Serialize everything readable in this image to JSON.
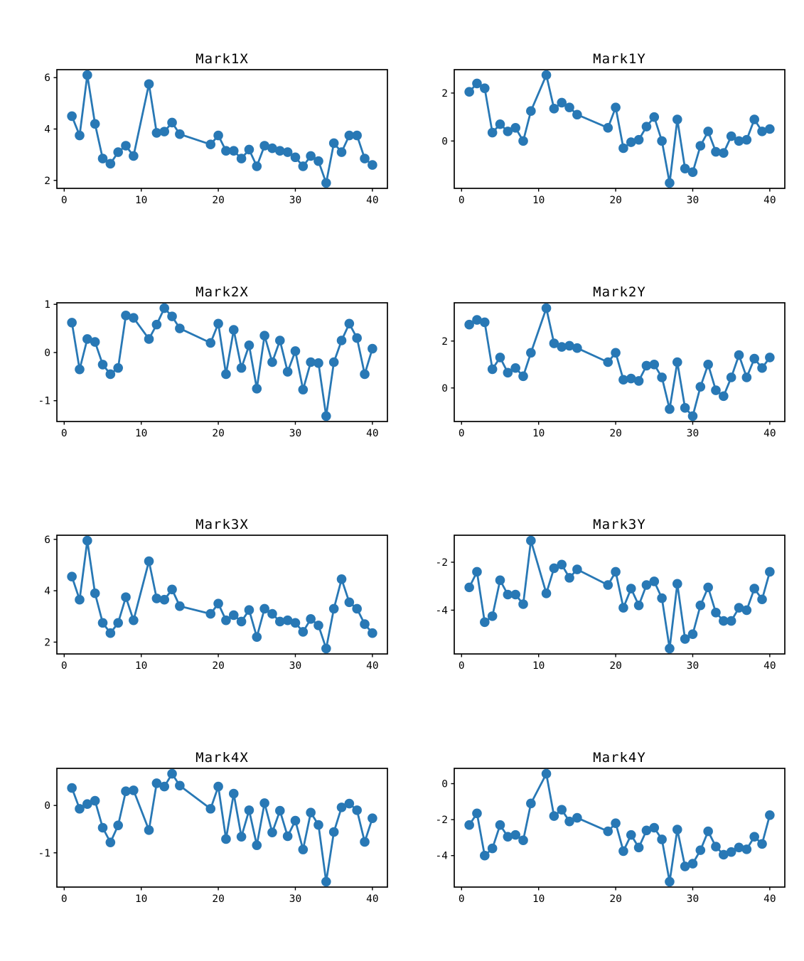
{
  "figure": {
    "background": "#ffffff",
    "accent_color": "#2878b5",
    "axis_color": "#000000",
    "text_color": "#000000"
  },
  "chart_data": [
    {
      "type": "line",
      "title": "Mark1X",
      "xlabel": "",
      "ylabel": "",
      "grid": false,
      "legend": null,
      "marker": "circle",
      "xticks": [
        0,
        10,
        20,
        30,
        40
      ],
      "yticks": [
        2,
        4,
        6
      ],
      "xlim": [
        -0.95,
        41.95
      ],
      "ylim": [
        1.69,
        6.31
      ],
      "x": [
        1,
        2,
        3,
        4,
        5,
        6,
        7,
        8,
        9,
        11,
        12,
        13,
        14,
        15,
        19,
        20,
        21,
        22,
        23,
        24,
        25,
        26,
        27,
        28,
        29,
        30,
        31,
        32,
        33,
        34,
        35,
        36,
        37,
        38,
        39,
        40
      ],
      "values": [
        4.5,
        3.75,
        6.1,
        4.2,
        2.85,
        2.65,
        3.1,
        3.35,
        2.95,
        5.75,
        3.85,
        3.9,
        4.25,
        3.8,
        3.4,
        3.75,
        3.15,
        3.15,
        2.85,
        3.2,
        2.55,
        3.35,
        3.25,
        3.15,
        3.1,
        2.9,
        2.55,
        2.95,
        2.75,
        1.9,
        3.45,
        3.1,
        3.75,
        3.75,
        2.85,
        2.6
      ]
    },
    {
      "type": "line",
      "title": "Mark1Y",
      "xlabel": "",
      "ylabel": "",
      "grid": false,
      "legend": null,
      "marker": "circle",
      "xticks": [
        0,
        10,
        20,
        30,
        40
      ],
      "yticks": [
        0,
        2
      ],
      "xlim": [
        -0.95,
        41.95
      ],
      "ylim": [
        -1.975,
        2.975
      ],
      "x": [
        1,
        2,
        3,
        4,
        5,
        6,
        7,
        8,
        9,
        11,
        12,
        13,
        14,
        15,
        19,
        20,
        21,
        22,
        23,
        24,
        25,
        26,
        27,
        28,
        29,
        30,
        31,
        32,
        33,
        34,
        35,
        36,
        37,
        38,
        39,
        40
      ],
      "values": [
        2.05,
        2.4,
        2.2,
        0.35,
        0.7,
        0.4,
        0.55,
        0.0,
        1.25,
        2.75,
        1.35,
        1.6,
        1.4,
        1.1,
        0.55,
        1.4,
        -0.3,
        -0.05,
        0.05,
        0.6,
        1.0,
        0.0,
        -1.75,
        0.9,
        -1.15,
        -1.3,
        -0.2,
        0.4,
        -0.45,
        -0.5,
        0.2,
        0.0,
        0.05,
        0.9,
        0.4,
        0.5
      ]
    },
    {
      "type": "line",
      "title": "Mark2X",
      "xlabel": "",
      "ylabel": "",
      "grid": false,
      "legend": null,
      "marker": "circle",
      "xticks": [
        0,
        10,
        20,
        30,
        40
      ],
      "yticks": [
        -1,
        0,
        1
      ],
      "xlim": [
        -0.95,
        41.95
      ],
      "ylim": [
        -1.432,
        1.032
      ],
      "x": [
        1,
        2,
        3,
        4,
        5,
        6,
        7,
        8,
        9,
        11,
        12,
        13,
        14,
        15,
        19,
        20,
        21,
        22,
        23,
        24,
        25,
        26,
        27,
        28,
        29,
        30,
        31,
        32,
        33,
        34,
        35,
        36,
        37,
        38,
        39,
        40
      ],
      "values": [
        0.62,
        -0.35,
        0.28,
        0.22,
        -0.25,
        -0.45,
        -0.32,
        0.77,
        0.72,
        0.28,
        0.58,
        0.92,
        0.75,
        0.5,
        0.2,
        0.6,
        -0.45,
        0.47,
        -0.32,
        0.15,
        -0.75,
        0.35,
        -0.2,
        0.25,
        -0.4,
        0.03,
        -0.77,
        -0.2,
        -0.22,
        -1.32,
        -0.2,
        0.25,
        0.6,
        0.3,
        -0.45,
        0.08
      ]
    },
    {
      "type": "line",
      "title": "Mark2Y",
      "xlabel": "",
      "ylabel": "",
      "grid": false,
      "legend": null,
      "marker": "circle",
      "xticks": [
        0,
        10,
        20,
        30,
        40
      ],
      "yticks": [
        0,
        2
      ],
      "xlim": [
        -0.95,
        41.95
      ],
      "ylim": [
        -1.43,
        3.63
      ],
      "x": [
        1,
        2,
        3,
        4,
        5,
        6,
        7,
        8,
        9,
        11,
        12,
        13,
        14,
        15,
        19,
        20,
        21,
        22,
        23,
        24,
        25,
        26,
        27,
        28,
        29,
        30,
        31,
        32,
        33,
        34,
        35,
        36,
        37,
        38,
        39,
        40
      ],
      "values": [
        2.7,
        2.9,
        2.8,
        0.8,
        1.3,
        0.65,
        0.85,
        0.5,
        1.5,
        3.4,
        1.9,
        1.75,
        1.8,
        1.7,
        1.1,
        1.5,
        0.35,
        0.4,
        0.3,
        0.95,
        1.0,
        0.45,
        -0.9,
        1.1,
        -0.85,
        -1.2,
        0.05,
        1.0,
        -0.1,
        -0.35,
        0.45,
        1.4,
        0.45,
        1.25,
        0.85,
        1.3
      ]
    },
    {
      "type": "line",
      "title": "Mark3X",
      "xlabel": "",
      "ylabel": "",
      "grid": false,
      "legend": null,
      "marker": "circle",
      "xticks": [
        0,
        10,
        20,
        30,
        40
      ],
      "yticks": [
        2,
        4,
        6
      ],
      "xlim": [
        -0.95,
        41.95
      ],
      "ylim": [
        1.54,
        6.16
      ],
      "x": [
        1,
        2,
        3,
        4,
        5,
        6,
        7,
        8,
        9,
        11,
        12,
        13,
        14,
        15,
        19,
        20,
        21,
        22,
        23,
        24,
        25,
        26,
        27,
        28,
        29,
        30,
        31,
        32,
        33,
        34,
        35,
        36,
        37,
        38,
        39,
        40
      ],
      "values": [
        4.55,
        3.65,
        5.95,
        3.9,
        2.75,
        2.35,
        2.75,
        3.75,
        2.85,
        5.15,
        3.7,
        3.65,
        4.05,
        3.4,
        3.1,
        3.5,
        2.85,
        3.05,
        2.8,
        3.25,
        2.2,
        3.3,
        3.1,
        2.8,
        2.85,
        2.75,
        2.4,
        2.9,
        2.65,
        1.75,
        3.3,
        4.45,
        3.55,
        3.3,
        2.7,
        2.35
      ]
    },
    {
      "type": "line",
      "title": "Mark3Y",
      "xlabel": "",
      "ylabel": "",
      "grid": false,
      "legend": null,
      "marker": "circle",
      "xticks": [
        0,
        10,
        20,
        30,
        40
      ],
      "yticks": [
        -4,
        -2
      ],
      "xlim": [
        -0.95,
        41.95
      ],
      "ylim": [
        -5.825,
        -0.875
      ],
      "x": [
        1,
        2,
        3,
        4,
        5,
        6,
        7,
        8,
        9,
        11,
        12,
        13,
        14,
        15,
        19,
        20,
        21,
        22,
        23,
        24,
        25,
        26,
        27,
        28,
        29,
        30,
        31,
        32,
        33,
        34,
        35,
        36,
        37,
        38,
        39,
        40
      ],
      "values": [
        -3.05,
        -2.4,
        -4.5,
        -4.25,
        -2.75,
        -3.35,
        -3.35,
        -3.75,
        -1.1,
        -3.3,
        -2.25,
        -2.1,
        -2.65,
        -2.3,
        -2.95,
        -2.4,
        -3.9,
        -3.1,
        -3.8,
        -2.95,
        -2.8,
        -3.5,
        -5.6,
        -2.9,
        -5.2,
        -5.0,
        -3.8,
        -3.05,
        -4.1,
        -4.45,
        -4.45,
        -3.9,
        -4.0,
        -3.1,
        -3.55,
        -2.4
      ]
    },
    {
      "type": "line",
      "title": "Mark4X",
      "xlabel": "",
      "ylabel": "",
      "grid": false,
      "legend": null,
      "marker": "circle",
      "xticks": [
        0,
        10,
        20,
        30,
        40
      ],
      "yticks": [
        -1,
        0
      ],
      "xlim": [
        -0.95,
        41.95
      ],
      "ylim": [
        -1.724,
        0.784
      ],
      "x": [
        1,
        2,
        3,
        4,
        5,
        6,
        7,
        8,
        9,
        11,
        12,
        13,
        14,
        15,
        19,
        20,
        21,
        22,
        23,
        24,
        25,
        26,
        27,
        28,
        29,
        30,
        31,
        32,
        33,
        34,
        35,
        36,
        37,
        38,
        39,
        40
      ],
      "values": [
        0.37,
        -0.07,
        0.03,
        0.1,
        -0.47,
        -0.78,
        -0.42,
        0.3,
        0.32,
        -0.52,
        0.47,
        0.4,
        0.67,
        0.42,
        -0.07,
        0.4,
        -0.71,
        0.25,
        -0.66,
        -0.1,
        -0.84,
        0.05,
        -0.57,
        -0.11,
        -0.65,
        -0.32,
        -0.93,
        -0.15,
        -0.41,
        -1.61,
        -0.56,
        -0.04,
        0.04,
        -0.1,
        -0.77,
        -0.27
      ]
    },
    {
      "type": "line",
      "title": "Mark4Y",
      "xlabel": "",
      "ylabel": "",
      "grid": false,
      "legend": null,
      "marker": "circle",
      "xticks": [
        0,
        10,
        20,
        30,
        40
      ],
      "yticks": [
        -4,
        -2,
        0
      ],
      "xlim": [
        -0.95,
        41.95
      ],
      "ylim": [
        -5.75,
        0.85
      ],
      "x": [
        1,
        2,
        3,
        4,
        5,
        6,
        7,
        8,
        9,
        11,
        12,
        13,
        14,
        15,
        19,
        20,
        21,
        22,
        23,
        24,
        25,
        26,
        27,
        28,
        29,
        30,
        31,
        32,
        33,
        34,
        35,
        36,
        37,
        38,
        39,
        40
      ],
      "values": [
        -2.3,
        -1.65,
        -4.0,
        -3.6,
        -2.3,
        -2.95,
        -2.85,
        -3.15,
        -1.1,
        0.55,
        -1.8,
        -1.45,
        -2.1,
        -1.9,
        -2.65,
        -2.2,
        -3.75,
        -2.85,
        -3.55,
        -2.6,
        -2.45,
        -3.1,
        -5.45,
        -2.55,
        -4.6,
        -4.45,
        -3.7,
        -2.65,
        -3.5,
        -3.95,
        -3.8,
        -3.55,
        -3.65,
        -2.95,
        -3.35,
        -1.75
      ]
    }
  ]
}
